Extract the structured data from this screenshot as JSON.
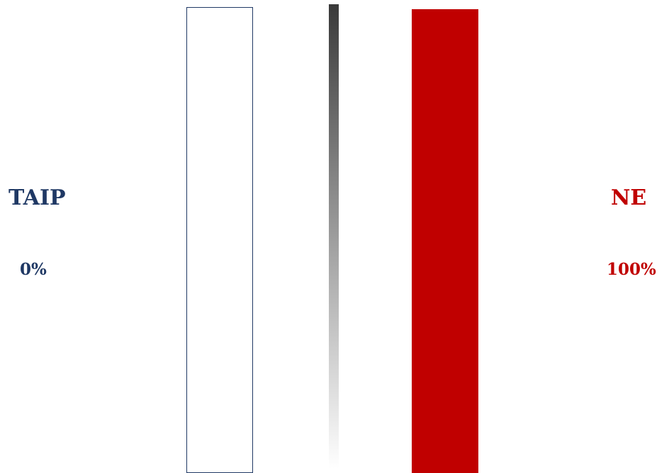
{
  "chart_data": {
    "type": "bar",
    "categories": [
      "TAIP",
      "NE"
    ],
    "values": [
      0,
      100
    ],
    "value_labels": [
      "0%",
      "100%"
    ],
    "ylim": [
      0,
      100
    ],
    "grid": false,
    "legend": "none"
  },
  "colors": {
    "yes": "#1f3864",
    "no": "#c00000",
    "divider_top": "#3a3a3a",
    "divider_bottom": "#ffffff"
  }
}
